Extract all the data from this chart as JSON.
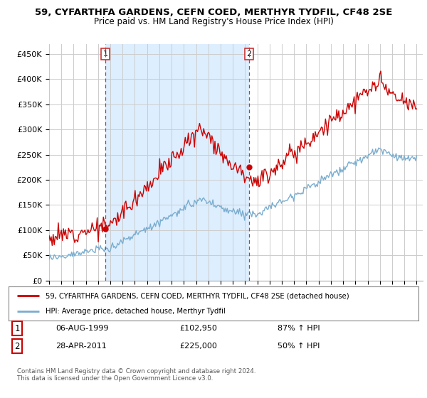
{
  "title1": "59, CYFARTHFA GARDENS, CEFN COED, MERTHYR TYDFIL, CF48 2SE",
  "title2": "Price paid vs. HM Land Registry's House Price Index (HPI)",
  "ylabel_ticks": [
    "£0",
    "£50K",
    "£100K",
    "£150K",
    "£200K",
    "£250K",
    "£300K",
    "£350K",
    "£400K",
    "£450K"
  ],
  "ytick_values": [
    0,
    50000,
    100000,
    150000,
    200000,
    250000,
    300000,
    350000,
    400000,
    450000
  ],
  "ylim": [
    0,
    470000
  ],
  "xlim_start": 1995.0,
  "xlim_end": 2025.5,
  "red_line_color": "#cc0000",
  "blue_line_color": "#7aadcf",
  "shade_color": "#ddeeff",
  "grid_color": "#cccccc",
  "bg_color": "#ffffff",
  "marker1_year": 1999.59,
  "marker1_value": 102950,
  "marker2_year": 2011.32,
  "marker2_value": 225000,
  "vline_color": "#cc3333",
  "legend_red_label": "59, CYFARTHFA GARDENS, CEFN COED, MERTHYR TYDFIL, CF48 2SE (detached house)",
  "legend_blue_label": "HPI: Average price, detached house, Merthyr Tydfil",
  "annot1_num": "1",
  "annot1_date": "06-AUG-1999",
  "annot1_price": "£102,950",
  "annot1_hpi": "87% ↑ HPI",
  "annot2_num": "2",
  "annot2_date": "28-APR-2011",
  "annot2_price": "£225,000",
  "annot2_hpi": "50% ↑ HPI",
  "footer": "Contains HM Land Registry data © Crown copyright and database right 2024.\nThis data is licensed under the Open Government Licence v3.0."
}
